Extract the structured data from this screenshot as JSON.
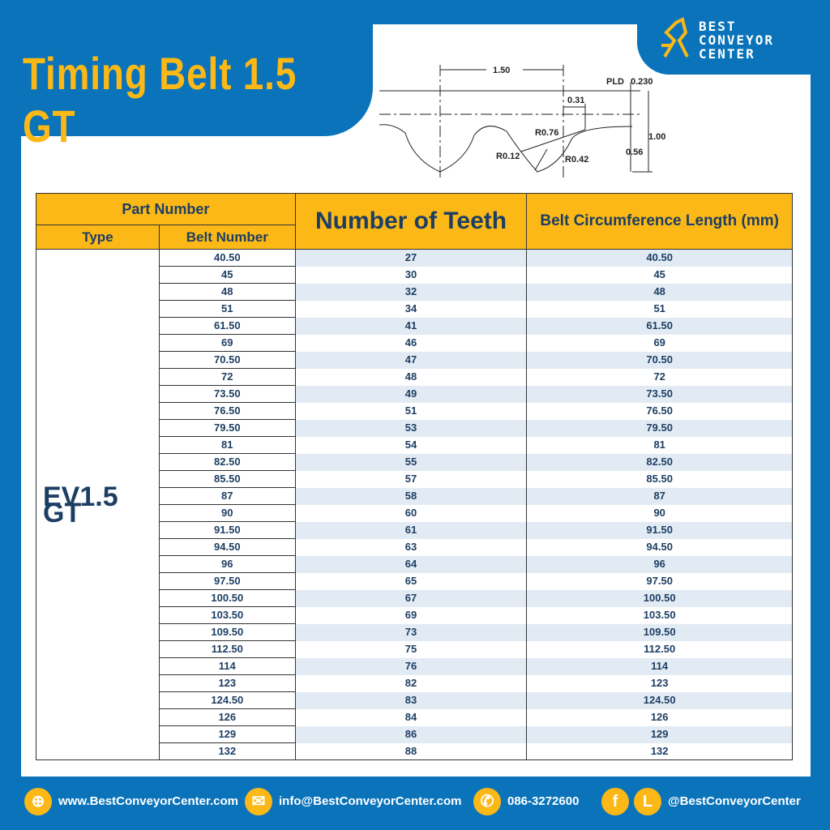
{
  "title": "Timing Belt 1.5 GT",
  "brand": {
    "line1": "BEST",
    "line2": "CONVEYOR",
    "line3": "CENTER"
  },
  "diagram": {
    "pitch": "1.50",
    "pld_label": "PLD",
    "pld": "0.230",
    "d031": "0.31",
    "r076": "R0.76",
    "r012": "R0.12",
    "r042": "R0.42",
    "d056": "0.56",
    "d100": "1.00"
  },
  "table": {
    "part_number": "Part Number",
    "type": "Type",
    "belt_number": "Belt Number",
    "teeth": "Number of Teeth",
    "circumference": "Belt Circumference Length (mm)",
    "type_value": "EV1.5 GT",
    "rows": [
      [
        "40.50",
        "27",
        "40.50"
      ],
      [
        "45",
        "30",
        "45"
      ],
      [
        "48",
        "32",
        "48"
      ],
      [
        "51",
        "34",
        "51"
      ],
      [
        "61.50",
        "41",
        "61.50"
      ],
      [
        "69",
        "46",
        "69"
      ],
      [
        "70.50",
        "47",
        "70.50"
      ],
      [
        "72",
        "48",
        "72"
      ],
      [
        "73.50",
        "49",
        "73.50"
      ],
      [
        "76.50",
        "51",
        "76.50"
      ],
      [
        "79.50",
        "53",
        "79.50"
      ],
      [
        "81",
        "54",
        "81"
      ],
      [
        "82.50",
        "55",
        "82.50"
      ],
      [
        "85.50",
        "57",
        "85.50"
      ],
      [
        "87",
        "58",
        "87"
      ],
      [
        "90",
        "60",
        "90"
      ],
      [
        "91.50",
        "61",
        "91.50"
      ],
      [
        "94.50",
        "63",
        "94.50"
      ],
      [
        "96",
        "64",
        "96"
      ],
      [
        "97.50",
        "65",
        "97.50"
      ],
      [
        "100.50",
        "67",
        "100.50"
      ],
      [
        "103.50",
        "69",
        "103.50"
      ],
      [
        "109.50",
        "73",
        "109.50"
      ],
      [
        "112.50",
        "75",
        "112.50"
      ],
      [
        "114",
        "76",
        "114"
      ],
      [
        "123",
        "82",
        "123"
      ],
      [
        "124.50",
        "83",
        "124.50"
      ],
      [
        "126",
        "84",
        "126"
      ],
      [
        "129",
        "86",
        "129"
      ],
      [
        "132",
        "88",
        "132"
      ]
    ]
  },
  "footer": {
    "website": "www.BestConveyorCenter.com",
    "email": "info@BestConveyorCenter.com",
    "phone": "086-3272600",
    "social": "@BestConveyorCenter"
  },
  "colors": {
    "blue": "#0a73ba",
    "yellow": "#fbb816",
    "text": "#1d3e63"
  }
}
